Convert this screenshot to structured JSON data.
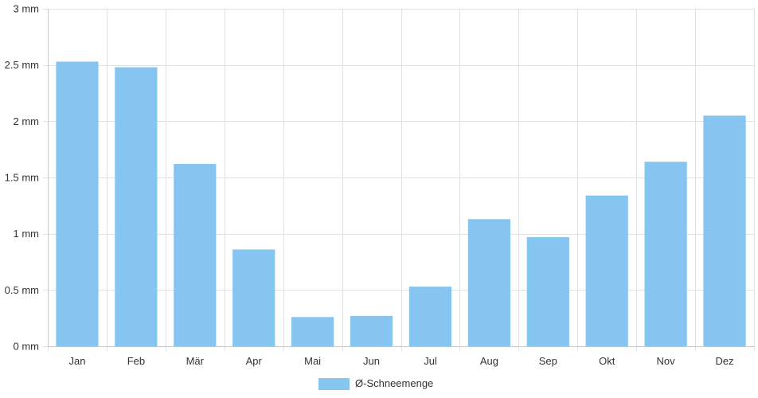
{
  "chart_data": {
    "type": "bar",
    "categories": [
      "Jan",
      "Feb",
      "Mär",
      "Apr",
      "Mai",
      "Jun",
      "Jul",
      "Aug",
      "Sep",
      "Okt",
      "Nov",
      "Dez"
    ],
    "series": [
      {
        "name": "Ø-Schneemenge",
        "values": [
          2.53,
          2.48,
          1.62,
          0.86,
          0.26,
          0.27,
          0.53,
          1.13,
          0.97,
          1.34,
          1.64,
          2.05
        ],
        "color": "#87c5f1"
      }
    ],
    "y_ticks": [
      "0 mm",
      "0.5 mm",
      "1 mm",
      "1.5 mm",
      "2 mm",
      "2.5 mm",
      "3 mm"
    ],
    "y_tick_values": [
      0,
      0.5,
      1,
      1.5,
      2,
      2.5,
      3
    ],
    "ylim": [
      0,
      3
    ],
    "grid": true,
    "legend_position": "bottom",
    "grid_color": "#e1e1e1"
  }
}
